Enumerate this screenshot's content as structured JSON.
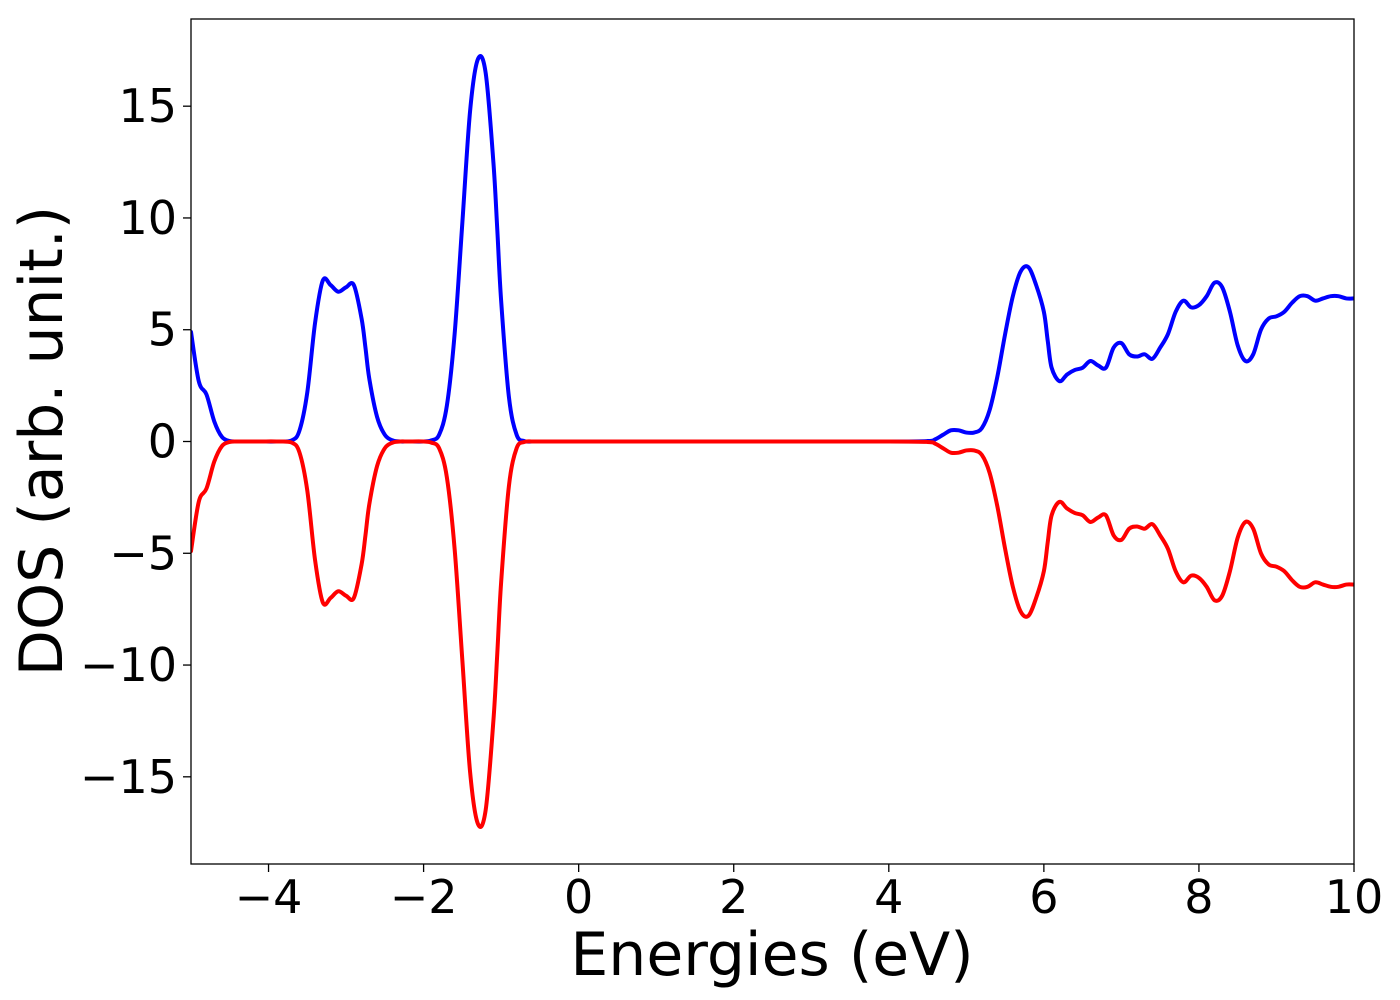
{
  "chart_data": {
    "type": "line",
    "xlabel": "Energies (eV)",
    "ylabel": "DOS (arb. unit.)",
    "xlim": [
      -5,
      10
    ],
    "ylim": [
      -18.9,
      18.9
    ],
    "xticks": [
      -4,
      -2,
      0,
      2,
      4,
      6,
      8,
      10
    ],
    "xtick_labels": [
      "−4",
      "−2",
      "0",
      "2",
      "4",
      "6",
      "8",
      "10"
    ],
    "yticks": [
      15,
      10,
      5,
      0,
      -5,
      -10,
      -15
    ],
    "ytick_labels": [
      "15",
      "10",
      "5",
      "0",
      "−5",
      "−10",
      "−15"
    ],
    "grid": false,
    "series": [
      {
        "color": "#0000ff",
        "x": [
          -5.0,
          -4.9,
          -4.8,
          -4.7,
          -4.6,
          -4.5,
          -4.4,
          -4.3,
          -4.1,
          -3.9,
          -3.7,
          -3.6,
          -3.5,
          -3.4,
          -3.3,
          -3.2,
          -3.1,
          -3.0,
          -2.9,
          -2.8,
          -2.75,
          -2.7,
          -2.6,
          -2.5,
          -2.4,
          -2.3,
          -2.2,
          -2.0,
          -1.9,
          -1.8,
          -1.7,
          -1.6,
          -1.5,
          -1.4,
          -1.3,
          -1.2,
          -1.1,
          -1.05,
          -1.0,
          -0.9,
          -0.8,
          -0.7,
          -0.6,
          -0.5,
          -0.4,
          0.0,
          2.0,
          4.0,
          4.5,
          4.6,
          4.7,
          4.8,
          4.9,
          5.0,
          5.1,
          5.2,
          5.3,
          5.4,
          5.5,
          5.6,
          5.7,
          5.8,
          5.9,
          6.0,
          6.05,
          6.1,
          6.2,
          6.3,
          6.4,
          6.5,
          6.6,
          6.7,
          6.8,
          6.9,
          7.0,
          7.1,
          7.2,
          7.3,
          7.4,
          7.5,
          7.6,
          7.7,
          7.8,
          7.9,
          8.0,
          8.1,
          8.2,
          8.3,
          8.4,
          8.5,
          8.6,
          8.7,
          8.8,
          8.9,
          9.0,
          9.1,
          9.2,
          9.3,
          9.4,
          9.5,
          9.6,
          9.7,
          9.8,
          9.9,
          10.0
        ],
        "y": [
          4.9,
          2.7,
          2.1,
          0.9,
          0.2,
          0.02,
          0.0,
          0.0,
          0.0,
          0.0,
          0.05,
          0.5,
          2.2,
          5.3,
          7.2,
          7.0,
          6.7,
          6.9,
          7.0,
          5.5,
          4.2,
          2.8,
          1.1,
          0.3,
          0.05,
          0.0,
          0.0,
          0.0,
          0.05,
          0.3,
          1.6,
          4.8,
          9.8,
          14.8,
          17.1,
          16.5,
          12.5,
          9.5,
          6.3,
          2.0,
          0.3,
          0.02,
          0.0,
          0.0,
          0.0,
          0.0,
          0.0,
          0.0,
          0.02,
          0.1,
          0.3,
          0.5,
          0.5,
          0.4,
          0.4,
          0.6,
          1.4,
          2.9,
          4.8,
          6.5,
          7.6,
          7.8,
          7.0,
          5.8,
          4.5,
          3.3,
          2.7,
          3.0,
          3.2,
          3.3,
          3.6,
          3.4,
          3.3,
          4.2,
          4.4,
          3.9,
          3.8,
          3.9,
          3.7,
          4.2,
          4.8,
          5.8,
          6.3,
          6.0,
          6.1,
          6.5,
          7.1,
          6.9,
          5.8,
          4.3,
          3.6,
          3.9,
          5.0,
          5.5,
          5.6,
          5.8,
          6.2,
          6.5,
          6.5,
          6.3,
          6.4,
          6.5,
          6.5,
          6.4,
          6.4
        ]
      },
      {
        "color": "#ff0000",
        "x": [
          -5.0,
          -4.9,
          -4.8,
          -4.7,
          -4.6,
          -4.5,
          -4.4,
          -4.3,
          -4.1,
          -3.9,
          -3.7,
          -3.6,
          -3.5,
          -3.4,
          -3.3,
          -3.2,
          -3.1,
          -3.0,
          -2.9,
          -2.8,
          -2.75,
          -2.7,
          -2.6,
          -2.5,
          -2.4,
          -2.3,
          -2.2,
          -2.0,
          -1.9,
          -1.8,
          -1.7,
          -1.6,
          -1.5,
          -1.4,
          -1.3,
          -1.2,
          -1.1,
          -1.05,
          -1.0,
          -0.9,
          -0.8,
          -0.7,
          -0.6,
          -0.5,
          -0.4,
          0.0,
          2.0,
          4.0,
          4.5,
          4.6,
          4.7,
          4.8,
          4.9,
          5.0,
          5.1,
          5.2,
          5.3,
          5.4,
          5.5,
          5.6,
          5.7,
          5.8,
          5.9,
          6.0,
          6.05,
          6.1,
          6.2,
          6.3,
          6.4,
          6.5,
          6.6,
          6.7,
          6.8,
          6.9,
          7.0,
          7.1,
          7.2,
          7.3,
          7.4,
          7.5,
          7.6,
          7.7,
          7.8,
          7.9,
          8.0,
          8.1,
          8.2,
          8.3,
          8.4,
          8.5,
          8.6,
          8.7,
          8.8,
          8.9,
          9.0,
          9.1,
          9.2,
          9.3,
          9.4,
          9.5,
          9.6,
          9.7,
          9.8,
          9.9,
          10.0
        ],
        "y": [
          -4.9,
          -2.7,
          -2.1,
          -0.9,
          -0.2,
          -0.02,
          0.0,
          0.0,
          0.0,
          0.0,
          -0.05,
          -0.5,
          -2.2,
          -5.3,
          -7.2,
          -7.0,
          -6.7,
          -6.9,
          -7.0,
          -5.5,
          -4.2,
          -2.8,
          -1.1,
          -0.3,
          -0.05,
          0.0,
          0.0,
          0.0,
          -0.05,
          -0.3,
          -1.6,
          -4.8,
          -9.8,
          -14.8,
          -17.1,
          -16.5,
          -12.5,
          -9.5,
          -6.3,
          -2.0,
          -0.3,
          -0.02,
          0.0,
          0.0,
          0.0,
          0.0,
          0.0,
          0.0,
          -0.02,
          -0.1,
          -0.3,
          -0.5,
          -0.5,
          -0.4,
          -0.4,
          -0.6,
          -1.4,
          -2.9,
          -4.8,
          -6.5,
          -7.6,
          -7.8,
          -7.0,
          -5.8,
          -4.5,
          -3.3,
          -2.7,
          -3.0,
          -3.2,
          -3.3,
          -3.6,
          -3.4,
          -3.3,
          -4.2,
          -4.4,
          -3.9,
          -3.8,
          -3.9,
          -3.7,
          -4.2,
          -4.8,
          -5.8,
          -6.3,
          -6.0,
          -6.1,
          -6.5,
          -7.1,
          -6.9,
          -5.8,
          -4.3,
          -3.6,
          -3.9,
          -5.0,
          -5.5,
          -5.6,
          -5.8,
          -6.2,
          -6.5,
          -6.5,
          -6.3,
          -6.4,
          -6.5,
          -6.5,
          -6.4,
          -6.4
        ]
      }
    ]
  }
}
